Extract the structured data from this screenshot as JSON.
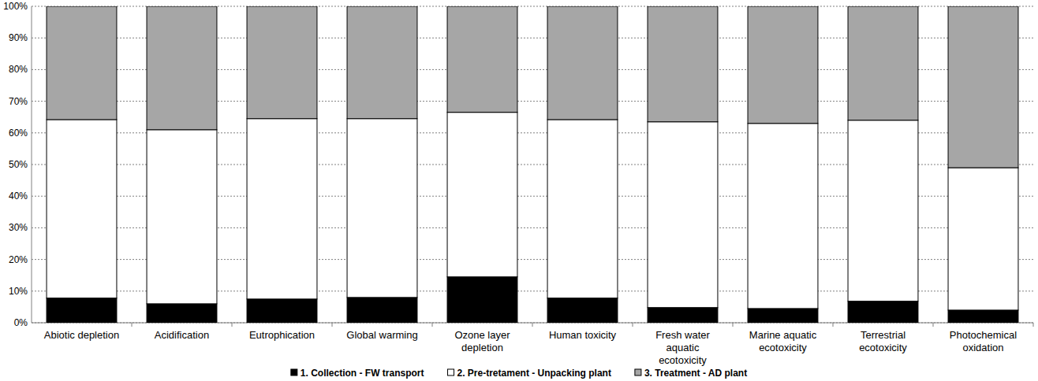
{
  "chart_data": {
    "type": "bar",
    "stacked": true,
    "grid": true,
    "legend": "bottom",
    "categories": [
      "Abiotic depletion",
      "Acidification",
      "Eutrophication",
      "Global warming",
      "Ozone layer depletion",
      "Human toxicity",
      "Fresh water aquatic ecotoxicity",
      "Marine aquatic ecotoxicity",
      "Terrestrial ecotoxicity",
      "Photochemical oxidation"
    ],
    "series": [
      {
        "name": "1. Collection - FW transport",
        "color": "#000000",
        "values": [
          7.8,
          6,
          7.5,
          8,
          14.5,
          7.8,
          4.8,
          4.5,
          6.8,
          4
        ]
      },
      {
        "name": "2. Pre-tretament - Unpacking plant",
        "color": "#ffffff",
        "values": [
          56.4,
          55,
          57,
          56.5,
          52,
          56.4,
          58.7,
          58.5,
          57.2,
          45
        ]
      },
      {
        "name": "3. Treatment - AD plant",
        "color": "#a6a6a6",
        "values": [
          35.8,
          39,
          35.5,
          35.5,
          33.5,
          35.8,
          36.5,
          37,
          36,
          51
        ]
      }
    ],
    "ylim": [
      0,
      100
    ],
    "yticks": [
      {
        "value": 0,
        "label": "0%"
      },
      {
        "value": 10,
        "label": "10%"
      },
      {
        "value": 20,
        "label": "20%"
      },
      {
        "value": 30,
        "label": "30%"
      },
      {
        "value": 40,
        "label": "40%"
      },
      {
        "value": 50,
        "label": "50%"
      },
      {
        "value": 60,
        "label": "60%"
      },
      {
        "value": 70,
        "label": "70%"
      },
      {
        "value": 80,
        "label": "80%"
      },
      {
        "value": 90,
        "label": "90%"
      },
      {
        "value": 100,
        "label": "100%"
      }
    ]
  }
}
